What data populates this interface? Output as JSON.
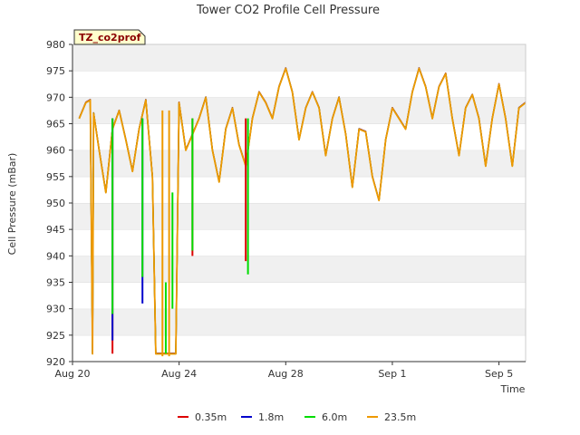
{
  "chart_data": {
    "type": "line",
    "title": "Tower CO2 Profile Cell Pressure",
    "site_badge": "TZ_co2prof",
    "xlabel": "Time",
    "ylabel": "Cell Pressure (mBar)",
    "xlim": [
      "2024-08-20",
      "2024-09-06"
    ],
    "ylim": [
      920,
      980
    ],
    "x_ticks": [
      {
        "date": "2024-08-20",
        "label": "Aug 20"
      },
      {
        "date": "2024-08-24",
        "label": "Aug 24"
      },
      {
        "date": "2024-08-28",
        "label": "Aug 28"
      },
      {
        "date": "2024-09-01",
        "label": "Sep 1"
      },
      {
        "date": "2024-09-05",
        "label": "Sep 5"
      }
    ],
    "y_ticks": [
      920,
      925,
      930,
      935,
      940,
      945,
      950,
      955,
      960,
      965,
      970,
      975,
      980
    ],
    "grid": "horizontal alternating bands",
    "legend_position": "bottom",
    "series": [
      {
        "name": "0.35m",
        "color": "#dd0000"
      },
      {
        "name": "1.8m",
        "color": "#0000cc"
      },
      {
        "name": "6.0m",
        "color": "#00dd00"
      },
      {
        "name": "23.5m",
        "color": "#ee9900"
      }
    ],
    "base_profile": [
      [
        "2024-08-20T06:00",
        966
      ],
      [
        "2024-08-20T12:00",
        969
      ],
      [
        "2024-08-20T16:00",
        969.5
      ],
      [
        "2024-08-20T18:00",
        921.5
      ],
      [
        "2024-08-20T19:00",
        967
      ],
      [
        "2024-08-21T00:00",
        960
      ],
      [
        "2024-08-21T06:00",
        952
      ],
      [
        "2024-08-21T12:00",
        964
      ],
      [
        "2024-08-21T18:00",
        967.5
      ],
      [
        "2024-08-22T00:00",
        962
      ],
      [
        "2024-08-22T06:00",
        956
      ],
      [
        "2024-08-22T12:00",
        964
      ],
      [
        "2024-08-22T18:00",
        969.5
      ],
      [
        "2024-08-23T00:00",
        955
      ],
      [
        "2024-08-23T03:00",
        921.5
      ],
      [
        "2024-08-23T21:00",
        921.5
      ],
      [
        "2024-08-24T00:00",
        969
      ],
      [
        "2024-08-24T06:00",
        960
      ],
      [
        "2024-08-24T12:00",
        963
      ],
      [
        "2024-08-24T18:00",
        966
      ],
      [
        "2024-08-25T00:00",
        970
      ],
      [
        "2024-08-25T06:00",
        960
      ],
      [
        "2024-08-25T12:00",
        954
      ],
      [
        "2024-08-25T18:00",
        964
      ],
      [
        "2024-08-26T00:00",
        968
      ],
      [
        "2024-08-26T06:00",
        961
      ],
      [
        "2024-08-26T12:00",
        957
      ],
      [
        "2024-08-26T18:00",
        966
      ],
      [
        "2024-08-27T00:00",
        971
      ],
      [
        "2024-08-27T06:00",
        969
      ],
      [
        "2024-08-27T12:00",
        966
      ],
      [
        "2024-08-27T18:00",
        972
      ],
      [
        "2024-08-28T00:00",
        975.5
      ],
      [
        "2024-08-28T06:00",
        971
      ],
      [
        "2024-08-28T12:00",
        962
      ],
      [
        "2024-08-28T18:00",
        968
      ],
      [
        "2024-08-29T00:00",
        971
      ],
      [
        "2024-08-29T06:00",
        968
      ],
      [
        "2024-08-29T12:00",
        959
      ],
      [
        "2024-08-29T18:00",
        966
      ],
      [
        "2024-08-30T00:00",
        970
      ],
      [
        "2024-08-30T06:00",
        963
      ],
      [
        "2024-08-30T12:00",
        953
      ],
      [
        "2024-08-30T18:00",
        964
      ],
      [
        "2024-08-31T00:00",
        963.5
      ],
      [
        "2024-08-31T06:00",
        955
      ],
      [
        "2024-08-31T12:00",
        950.5
      ],
      [
        "2024-08-31T18:00",
        962
      ],
      [
        "2024-09-01T00:00",
        968
      ],
      [
        "2024-09-01T06:00",
        966
      ],
      [
        "2024-09-01T12:00",
        964
      ],
      [
        "2024-09-01T18:00",
        971
      ],
      [
        "2024-09-02T00:00",
        975.5
      ],
      [
        "2024-09-02T06:00",
        972
      ],
      [
        "2024-09-02T12:00",
        966
      ],
      [
        "2024-09-02T18:00",
        972
      ],
      [
        "2024-09-03T00:00",
        974.5
      ],
      [
        "2024-09-03T06:00",
        966
      ],
      [
        "2024-09-03T12:00",
        959
      ],
      [
        "2024-09-03T18:00",
        968
      ],
      [
        "2024-09-04T00:00",
        970.5
      ],
      [
        "2024-09-04T06:00",
        966
      ],
      [
        "2024-09-04T12:00",
        957
      ],
      [
        "2024-09-04T18:00",
        966
      ],
      [
        "2024-09-05T00:00",
        972.5
      ],
      [
        "2024-09-05T06:00",
        966
      ],
      [
        "2024-09-05T12:00",
        957
      ],
      [
        "2024-09-05T18:00",
        968
      ],
      [
        "2024-09-06T00:00",
        969
      ],
      [
        "2024-09-06T03:00",
        969.5
      ],
      [
        "2024-09-06T06:00",
        921.5
      ],
      [
        "2024-09-06T12:00",
        921.5
      ]
    ],
    "spikes": [
      {
        "series": "0.35m",
        "x": "2024-08-21T12:00",
        "low": 921.5,
        "high": 966
      },
      {
        "series": "1.8m",
        "x": "2024-08-21T12:00",
        "low": 924,
        "high": 966
      },
      {
        "series": "6.0m",
        "x": "2024-08-21T12:00",
        "low": 929,
        "high": 966
      },
      {
        "series": "1.8m",
        "x": "2024-08-22T15:00",
        "low": 931,
        "high": 966
      },
      {
        "series": "6.0m",
        "x": "2024-08-22T15:00",
        "low": 936,
        "high": 966
      },
      {
        "series": "23.5m",
        "x": "2024-08-23T09:00",
        "low": 921,
        "high": 967.5
      },
      {
        "series": "6.0m",
        "x": "2024-08-23T12:00",
        "low": 921.5,
        "high": 935
      },
      {
        "series": "23.5m",
        "x": "2024-08-23T15:00",
        "low": 921,
        "high": 967.5
      },
      {
        "series": "6.0m",
        "x": "2024-08-23T18:00",
        "low": 930,
        "high": 952
      },
      {
        "series": "0.35m",
        "x": "2024-08-24T12:00",
        "low": 940,
        "high": 966
      },
      {
        "series": "6.0m",
        "x": "2024-08-24T12:00",
        "low": 941,
        "high": 966
      },
      {
        "series": "0.35m",
        "x": "2024-08-26T12:00",
        "low": 939,
        "high": 966
      },
      {
        "series": "6.0m",
        "x": "2024-08-26T14:00",
        "low": 936.5,
        "high": 966
      }
    ]
  }
}
